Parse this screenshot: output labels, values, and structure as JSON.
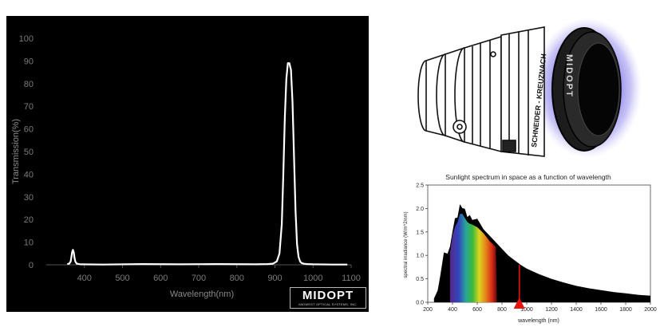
{
  "chart_data": [
    {
      "type": "line",
      "title": "",
      "xlabel": "Wavelength(nm)",
      "ylabel": "Transmission(%)",
      "xlim": [
        300,
        1100
      ],
      "ylim": [
        0,
        100
      ],
      "x_ticks": [
        400,
        500,
        600,
        700,
        800,
        900,
        1000,
        1100
      ],
      "y_ticks": [
        0,
        10,
        20,
        30,
        40,
        50,
        60,
        70,
        80,
        90,
        100
      ],
      "grid": false,
      "background": "#000000",
      "line_color": "#ffffff",
      "series": [
        {
          "x": [
            355,
            360,
            364,
            366,
            368,
            370,
            372,
            374,
            376,
            380,
            390,
            450,
            550,
            650,
            750,
            850,
            880,
            895,
            905,
            912,
            918,
            922,
            926,
            930,
            934,
            938,
            942,
            946,
            950,
            954,
            958,
            962,
            966,
            970,
            975,
            985,
            1000,
            1050,
            1090
          ],
          "y": [
            0.3,
            0.5,
            1.5,
            3.5,
            5.8,
            6.6,
            5.5,
            3.2,
            1.5,
            0.5,
            0.2,
            0.1,
            0.3,
            0.2,
            0.3,
            0.2,
            0.3,
            0.5,
            1.5,
            5,
            18,
            40,
            65,
            82,
            89,
            89,
            86,
            72,
            48,
            24,
            9,
            3.5,
            1.5,
            0.8,
            0.5,
            0.3,
            0.2,
            0.1,
            0.1
          ]
        }
      ]
    },
    {
      "type": "area",
      "title": "Sunlight spectrum in space as a function of wavelength",
      "xlabel": "wavelength (nm)",
      "ylabel": "spectral irradiance (W/m^2/nm)",
      "xlim": [
        200,
        2000
      ],
      "ylim": [
        0,
        2.5
      ],
      "x_ticks": [
        200,
        400,
        600,
        800,
        1000,
        1200,
        1400,
        1600,
        1800,
        2000
      ],
      "y_ticks": [
        0.0,
        0.5,
        1.0,
        1.5,
        2.0,
        2.5
      ],
      "y_tick_labels": [
        "0.0",
        "0.5",
        "1.0",
        "1.5",
        "2.0",
        "2.5"
      ],
      "marker_wavelength": 940,
      "marker_color": "#e8150f",
      "series": [
        {
          "x": [
            250,
            280,
            300,
            330,
            360,
            380,
            400,
            420,
            440,
            460,
            480,
            500,
            520,
            540,
            560,
            600,
            650,
            700,
            750,
            800,
            850,
            900,
            950,
            1000,
            1100,
            1200,
            1300,
            1400,
            1500,
            1600,
            1700,
            1800,
            1900,
            2000
          ],
          "y": [
            0.08,
            0.25,
            0.55,
            1.02,
            1.08,
            1.15,
            1.55,
            1.75,
            1.85,
            2.05,
            2.05,
            1.95,
            1.86,
            1.82,
            1.8,
            1.74,
            1.6,
            1.42,
            1.28,
            1.14,
            1.0,
            0.9,
            0.8,
            0.72,
            0.6,
            0.5,
            0.42,
            0.35,
            0.3,
            0.26,
            0.22,
            0.19,
            0.16,
            0.14
          ]
        }
      ]
    }
  ],
  "logo": {
    "brand": "MIDOPT",
    "tagline": "MIDWEST OPTICAL SYSTEMS, INC."
  },
  "lens_illustration": {
    "ring_text": "MIDOPT",
    "barrel_text": "SCHNEIDER - KREUZNACH",
    "glow_color": "#7b72e6"
  }
}
